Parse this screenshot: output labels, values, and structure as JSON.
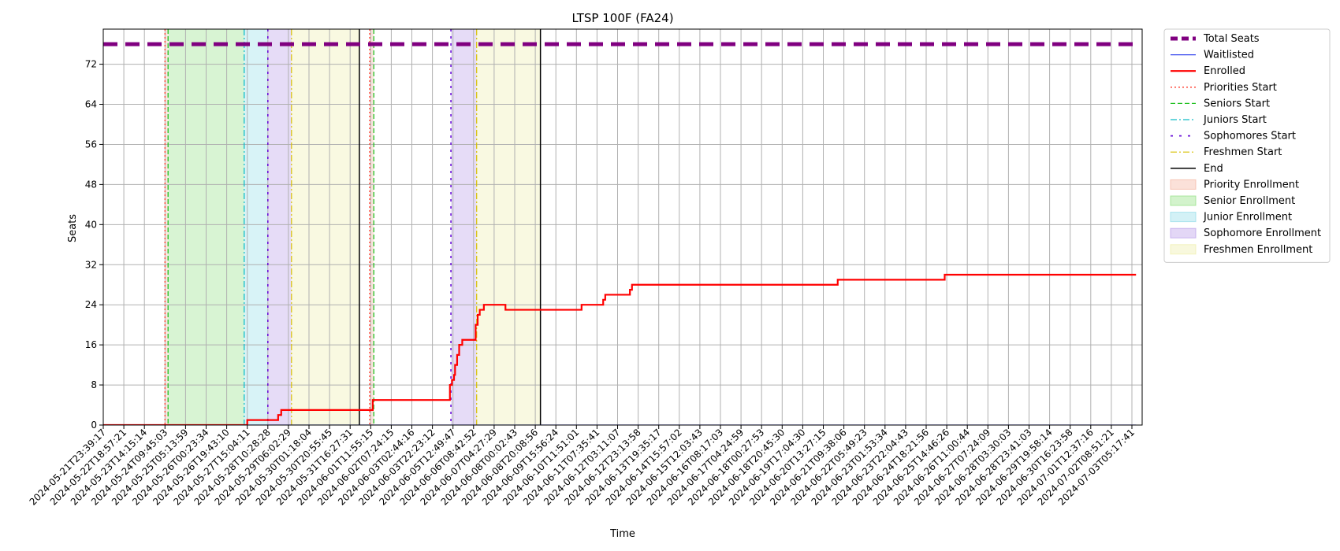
{
  "chart_data": {
    "type": "line",
    "title": "LTSP 100F (FA24)",
    "xlabel": "Time",
    "ylabel": "Seats",
    "ylim": [
      0,
      79
    ],
    "yticks": [
      0,
      8,
      16,
      24,
      32,
      40,
      48,
      56,
      64,
      72
    ],
    "grid": true,
    "legend_position": "outside-top-right",
    "x_ticks": [
      "2024-05-21T23:39:17",
      "2024-05-22T18:57:21",
      "2024-05-23T14:15:14",
      "2024-05-24T09:45:03",
      "2024-05-25T05:13:59",
      "2024-05-26T00:23:34",
      "2024-05-26T19:43:10",
      "2024-05-27T15:04:11",
      "2024-05-28T10:28:28",
      "2024-05-29T06:02:29",
      "2024-05-30T01:18:04",
      "2024-05-30T20:55:45",
      "2024-05-31T16:27:31",
      "2024-06-01T11:55:15",
      "2024-06-02T07:24:15",
      "2024-06-03T02:44:16",
      "2024-06-03T22:23:12",
      "2024-06-05T12:49:47",
      "2024-06-06T08:42:52",
      "2024-06-07T04:27:29",
      "2024-06-08T00:02:43",
      "2024-06-08T20:08:56",
      "2024-06-09T15:56:24",
      "2024-06-10T11:51:01",
      "2024-06-11T07:35:41",
      "2024-06-12T03:11:07",
      "2024-06-12T23:13:58",
      "2024-06-13T19:35:17",
      "2024-06-14T15:57:02",
      "2024-06-15T12:03:43",
      "2024-06-16T08:17:03",
      "2024-06-17T04:24:59",
      "2024-06-18T00:27:53",
      "2024-06-18T20:45:30",
      "2024-06-19T17:04:30",
      "2024-06-20T13:27:15",
      "2024-06-21T09:38:06",
      "2024-06-22T05:49:23",
      "2024-06-23T01:53:34",
      "2024-06-23T22:04:43",
      "2024-06-24T18:21:56",
      "2024-06-25T14:46:26",
      "2024-06-26T11:00:44",
      "2024-06-27T07:24:09",
      "2024-06-28T03:30:03",
      "2024-06-28T23:41:03",
      "2024-06-29T19:58:14",
      "2024-06-30T16:23:58",
      "2024-07-01T12:37:16",
      "2024-07-02T08:51:21",
      "2024-07-03T05:17:41"
    ],
    "phases": [
      {
        "name": "Priority Enrollment",
        "start": 3.0,
        "end": 3.15,
        "color": "#f4b4a0"
      },
      {
        "name": "Senior Enrollment",
        "start": 3.15,
        "end": 6.85,
        "color": "#90e080"
      },
      {
        "name": "Junior Enrollment",
        "start": 6.85,
        "end": 8.0,
        "color": "#90dce8"
      },
      {
        "name": "Sophomore Enrollment",
        "start": 8.0,
        "end": 9.15,
        "color": "#b89ce8"
      },
      {
        "name": "Freshmen Enrollment",
        "start": 9.15,
        "end": 12.45,
        "color": "#eeeeaa"
      },
      {
        "name": "Priority Enrollment",
        "start": 12.95,
        "end": 13.15,
        "color": "#f4b4a0"
      },
      {
        "name": "Sophomore Enrollment",
        "start": 16.9,
        "end": 18.15,
        "color": "#b89ce8"
      },
      {
        "name": "Freshmen Enrollment",
        "start": 18.15,
        "end": 21.25,
        "color": "#eeeeaa"
      }
    ],
    "phase_markers": [
      {
        "name": "Priorities Start",
        "x": [
          3.0,
          12.95
        ],
        "color": "#ff3a2a",
        "dash": "2,3",
        "width": 1.3
      },
      {
        "name": "Seniors Start",
        "x": [
          3.15,
          13.15
        ],
        "color": "#22c022",
        "dash": "6,3",
        "width": 1.3
      },
      {
        "name": "Juniors Start",
        "x": [
          6.85
        ],
        "color": "#10bcc8",
        "dash": "8,3,2,3",
        "width": 1.3
      },
      {
        "name": "Sophomores Start",
        "x": [
          8.0,
          16.9
        ],
        "color": "#6a10d8",
        "dash": "3,6",
        "width": 1.6
      },
      {
        "name": "Freshmen Start",
        "x": [
          9.15,
          18.15
        ],
        "color": "#d8c000",
        "dash": "8,3,2,3",
        "width": 1.2
      },
      {
        "name": "End",
        "x": [
          12.45,
          21.25
        ],
        "color": "#000000",
        "dash": "",
        "width": 1.5
      }
    ],
    "total_seats": 76,
    "series": [
      {
        "name": "Total Seats",
        "color": "#800080",
        "x": [
          0,
          50.2
        ],
        "y": [
          76,
          76
        ]
      },
      {
        "name": "Waitlisted",
        "color": "#3344ee",
        "x": [
          0,
          50.2
        ],
        "y": [
          0,
          0
        ]
      },
      {
        "name": "Enrolled",
        "color": "#ff0000",
        "x": [
          0,
          6.95,
          7.0,
          8.3,
          8.5,
          8.65,
          13.0,
          13.1,
          16.8,
          16.85,
          16.95,
          17.05,
          17.1,
          17.2,
          17.3,
          17.45,
          18.0,
          18.1,
          18.2,
          18.3,
          18.5,
          19.45,
          19.55,
          23.2,
          23.25,
          24.2,
          24.3,
          24.4,
          25.6,
          25.7,
          35.6,
          35.7,
          40.8,
          40.9,
          50.2
        ],
        "y": [
          0,
          0,
          1,
          1,
          2,
          3,
          3,
          5,
          5,
          8,
          9,
          10,
          12,
          14,
          16,
          17,
          17,
          20,
          22,
          23,
          24,
          24,
          23,
          23,
          24,
          24,
          25,
          26,
          27,
          28,
          28,
          29,
          29,
          30,
          30
        ]
      }
    ]
  },
  "legend": [
    {
      "label": "Total Seats",
      "kind": "line",
      "color": "#800080",
      "dash": "9,5",
      "width": 5
    },
    {
      "label": "Waitlisted",
      "kind": "line",
      "color": "#3344ee",
      "dash": "",
      "width": 1.3
    },
    {
      "label": "Enrolled",
      "kind": "line",
      "color": "#ff0000",
      "dash": "",
      "width": 2.2
    },
    {
      "label": "Priorities Start",
      "kind": "line",
      "color": "#ff3a2a",
      "dash": "2,3",
      "width": 1.3
    },
    {
      "label": "Seniors Start",
      "kind": "line",
      "color": "#22c022",
      "dash": "6,3",
      "width": 1.3
    },
    {
      "label": "Juniors Start",
      "kind": "line",
      "color": "#10bcc8",
      "dash": "8,3,2,3",
      "width": 1.3
    },
    {
      "label": "Sophomores Start",
      "kind": "line",
      "color": "#6a10d8",
      "dash": "3,8",
      "width": 1.8
    },
    {
      "label": "Freshmen Start",
      "kind": "line",
      "color": "#d8c000",
      "dash": "8,3,2,3",
      "width": 1.2
    },
    {
      "label": "End",
      "kind": "line",
      "color": "#000000",
      "dash": "",
      "width": 1.5
    },
    {
      "label": "Priority Enrollment",
      "kind": "patch",
      "color": "#f4b4a0"
    },
    {
      "label": "Senior Enrollment",
      "kind": "patch",
      "color": "#90e080"
    },
    {
      "label": "Junior Enrollment",
      "kind": "patch",
      "color": "#90dce8"
    },
    {
      "label": "Sophomore Enrollment",
      "kind": "patch",
      "color": "#b89ce8"
    },
    {
      "label": "Freshmen Enrollment",
      "kind": "patch",
      "color": "#eeeeaa"
    }
  ]
}
